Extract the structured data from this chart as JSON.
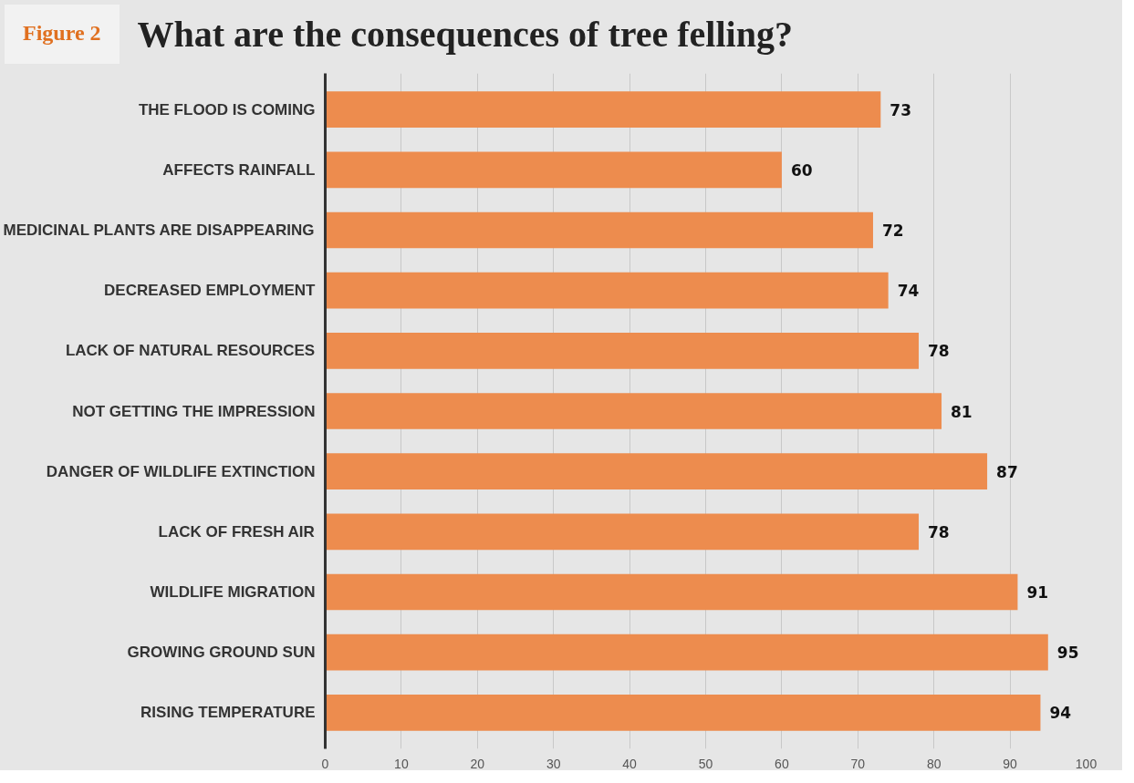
{
  "chart_data": {
    "type": "bar",
    "orientation": "horizontal",
    "title": "What are the consequences of tree felling?",
    "annotations": [
      "Figure 2"
    ],
    "categories": [
      "THE FLOOD IS COMING",
      "AFFECTS RAINFALL",
      "MEDICINAL PLANTS ARE DISAPPEARING",
      "DECREASED EMPLOYMENT",
      "LACK OF NATURAL RESOURCES",
      "NOT GETTING THE IMPRESSION",
      "DANGER OF WILDLIFE EXTINCTION",
      "LACK OF FRESH AIR",
      "WILDLIFE MIGRATION",
      "GROWING GROUND SUN",
      "RISING TEMPERATURE"
    ],
    "values": [
      73,
      60,
      72,
      74,
      78,
      81,
      87,
      78,
      91,
      95,
      94
    ],
    "color": "#ed8c4e",
    "xlim": [
      0,
      100
    ],
    "xticks": [
      0,
      10,
      20,
      30,
      40,
      50,
      60,
      70,
      80,
      90,
      100
    ],
    "grid": "x",
    "data_labels": true
  }
}
